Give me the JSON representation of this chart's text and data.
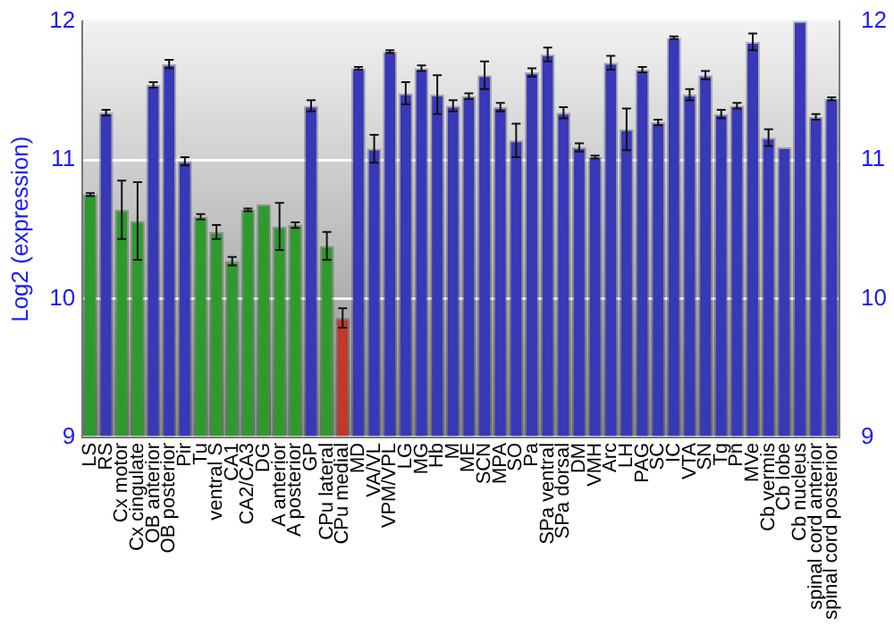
{
  "chart_data": {
    "type": "bar",
    "ylabel": "Log2 (expression)",
    "categories": [
      "LS",
      "RS",
      "Cx motor",
      "Cx cingulate",
      "OB anterior",
      "OB posterior",
      "Pir",
      "Tu",
      "ventral S",
      "CA1",
      "CA2/CA3",
      "DG",
      "A anterior",
      "A posterior",
      "GP",
      "CPu lateral",
      "CPu medial",
      "MD",
      "VA/VL",
      "VPM/VPL",
      "LG",
      "MG",
      "Hb",
      "M",
      "ME",
      "SCN",
      "MPA",
      "SO",
      "Pa",
      "SPa ventral",
      "SPa dorsal",
      "DM",
      "VMH",
      "Arc",
      "LH",
      "PAG",
      "SC",
      "IC",
      "VTA",
      "SN",
      "Tg",
      "Pn",
      "MVe",
      "Cb vermis",
      "Cb lobe",
      "Cb nucleus",
      "spinal cord anterior",
      "spinal cord posterior"
    ],
    "values": [
      10.75,
      11.34,
      10.64,
      10.56,
      11.54,
      11.69,
      10.99,
      10.59,
      10.48,
      10.27,
      10.64,
      10.68,
      10.52,
      10.53,
      11.39,
      10.38,
      9.86,
      11.66,
      11.08,
      11.78,
      11.48,
      11.66,
      11.47,
      11.39,
      11.46,
      11.61,
      11.38,
      11.14,
      11.63,
      11.76,
      11.34,
      11.09,
      11.02,
      11.7,
      11.22,
      11.65,
      11.27,
      11.88,
      11.47,
      11.61,
      11.33,
      11.39,
      11.85,
      11.16,
      11.09,
      12.0,
      11.31,
      11.44
    ],
    "errors": [
      0.01,
      0.02,
      0.21,
      0.28,
      0.02,
      0.03,
      0.03,
      0.02,
      0.05,
      0.03,
      0.01,
      null,
      0.17,
      0.02,
      0.04,
      0.1,
      0.07,
      0.01,
      0.1,
      0.01,
      0.08,
      0.02,
      0.14,
      0.04,
      0.02,
      0.1,
      0.03,
      0.12,
      0.03,
      0.05,
      0.04,
      0.03,
      0.01,
      0.05,
      0.15,
      0.02,
      0.02,
      0.01,
      0.04,
      0.03,
      0.03,
      0.02,
      0.06,
      0.06,
      null,
      null,
      0.02,
      0.01
    ],
    "colors": [
      "#2e9a2e",
      "#3838b8",
      "#2e9a2e",
      "#2e9a2e",
      "#3838b8",
      "#3838b8",
      "#3838b8",
      "#2e9a2e",
      "#2e9a2e",
      "#2e9a2e",
      "#2e9a2e",
      "#2e9a2e",
      "#2e9a2e",
      "#2e9a2e",
      "#3838b8",
      "#2e9a2e",
      "#c0392b",
      "#3838b8",
      "#3838b8",
      "#3838b8",
      "#3838b8",
      "#3838b8",
      "#3838b8",
      "#3838b8",
      "#3838b8",
      "#3838b8",
      "#3838b8",
      "#3838b8",
      "#3838b8",
      "#3838b8",
      "#3838b8",
      "#3838b8",
      "#3838b8",
      "#3838b8",
      "#3838b8",
      "#3838b8",
      "#3838b8",
      "#3838b8",
      "#3838b8",
      "#3838b8",
      "#3838b8",
      "#3838b8",
      "#3838b8",
      "#3838b8",
      "#3838b8",
      "#3838b8",
      "#3838b8",
      "#3838b8"
    ],
    "ylim": [
      9,
      12
    ],
    "yticks": [
      9,
      10,
      11,
      12
    ],
    "y2lim": [
      9,
      12
    ],
    "y2ticks": [
      9,
      10,
      11,
      12
    ],
    "grid": "y",
    "legend": false
  }
}
